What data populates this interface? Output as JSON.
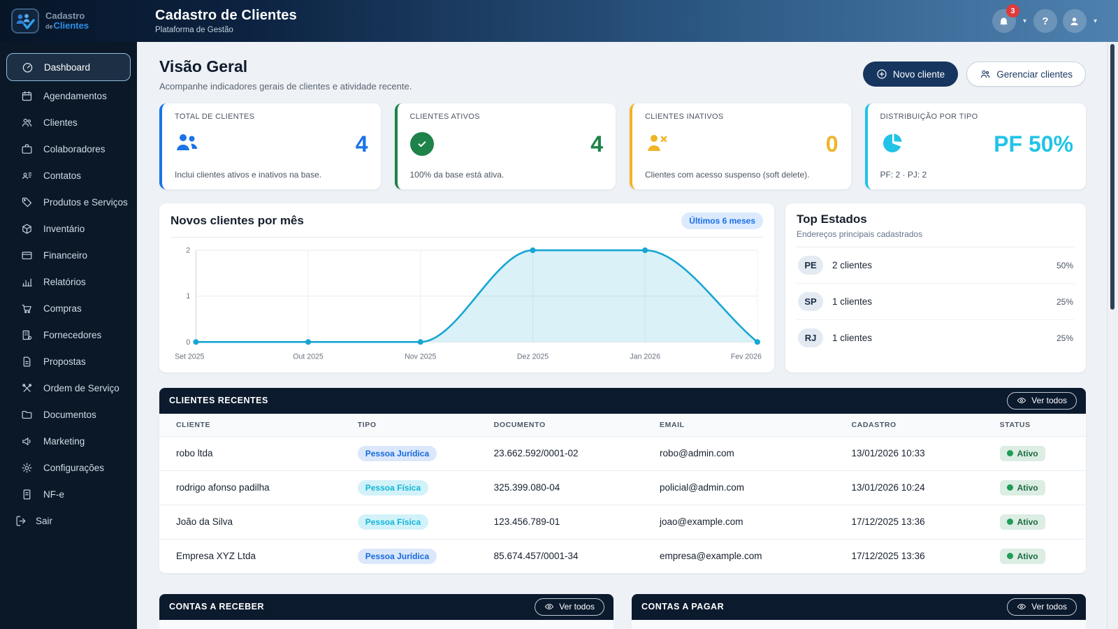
{
  "header": {
    "logo": {
      "line1": "Cadastro",
      "de": "de",
      "line2": "Clientes"
    },
    "title": "Cadastro de Clientes",
    "subtitle": "Plataforma de Gestão",
    "notifications_count": "3",
    "help_glyph": "?"
  },
  "sidebar": {
    "items": [
      {
        "label": "Dashboard"
      },
      {
        "label": "Agendamentos"
      },
      {
        "label": "Clientes"
      },
      {
        "label": "Colaboradores"
      },
      {
        "label": "Contatos"
      },
      {
        "label": "Produtos e Serviços"
      },
      {
        "label": "Inventário"
      },
      {
        "label": "Financeiro"
      },
      {
        "label": "Relatórios"
      },
      {
        "label": "Compras"
      },
      {
        "label": "Fornecedores"
      },
      {
        "label": "Propostas"
      },
      {
        "label": "Ordem de Serviço"
      },
      {
        "label": "Documentos"
      },
      {
        "label": "Marketing"
      },
      {
        "label": "Configurações"
      },
      {
        "label": "NF-e"
      },
      {
        "label": "Sair"
      }
    ]
  },
  "page": {
    "title": "Visão Geral",
    "subtitle": "Acompanhe indicadores gerais de clientes e atividade recente.",
    "new_client": "Novo cliente",
    "manage_clients": "Gerenciar clientes"
  },
  "stats": [
    {
      "label": "TOTAL DE CLIENTES",
      "value": "4",
      "footer": "Inclui clientes ativos e inativos na base.",
      "color": "#1a73e8"
    },
    {
      "label": "CLIENTES ATIVOS",
      "value": "4",
      "footer": "100% da base está ativa.",
      "color": "#1d8348"
    },
    {
      "label": "CLIENTES INATIVOS",
      "value": "0",
      "footer": "Clientes com acesso suspenso (soft delete).",
      "color": "#f0b429"
    },
    {
      "label": "DISTRIBUIÇÃO POR TIPO",
      "value": "PF 50%",
      "footer": "PF: 2 · PJ: 2",
      "color": "#22c3e6"
    }
  ],
  "chart_card": {
    "title": "Novos clientes por mês",
    "badge": "Últimos 6 meses"
  },
  "chart_data": {
    "type": "area",
    "x": [
      "Set 2025",
      "Out 2025",
      "Nov 2025",
      "Dez 2025",
      "Jan 2026",
      "Fev 2026"
    ],
    "values": [
      0,
      0,
      0,
      2,
      2,
      0
    ],
    "title": "Novos clientes por mês",
    "xlabel": "",
    "ylabel": "",
    "ylim": [
      0,
      2
    ],
    "yticks": [
      0,
      1,
      2
    ],
    "grid": true,
    "line_color": "#17a6d4",
    "fill_color": "rgba(23,166,212,0.16)"
  },
  "top_states": {
    "title": "Top Estados",
    "subtitle": "Endereços principais cadastrados",
    "rows": [
      {
        "code": "PE",
        "label": "2 clientes",
        "pct": "50%"
      },
      {
        "code": "SP",
        "label": "1 clientes",
        "pct": "25%"
      },
      {
        "code": "RJ",
        "label": "1 clientes",
        "pct": "25%"
      }
    ]
  },
  "recent_clients": {
    "title": "CLIENTES RECENTES",
    "view_all": "Ver todos",
    "columns": [
      "CLIENTE",
      "TIPO",
      "DOCUMENTO",
      "EMAIL",
      "CADASTRO",
      "STATUS"
    ],
    "rows": [
      {
        "name": "robo ltda",
        "type": "Pessoa Jurídica",
        "document": "23.662.592/0001-02",
        "email": "robo@admin.com",
        "created": "13/01/2026 10:33",
        "status": "Ativo"
      },
      {
        "name": "rodrigo afonso padilha",
        "type": "Pessoa Física",
        "document": "325.399.080-04",
        "email": "policial@admin.com",
        "created": "13/01/2026 10:24",
        "status": "Ativo"
      },
      {
        "name": "João da Silva",
        "type": "Pessoa Física",
        "document": "123.456.789-01",
        "email": "joao@example.com",
        "created": "17/12/2025 13:36",
        "status": "Ativo"
      },
      {
        "name": "Empresa XYZ Ltda",
        "type": "Pessoa Jurídica",
        "document": "85.674.457/0001-34",
        "email": "empresa@example.com",
        "created": "17/12/2025 13:36",
        "status": "Ativo"
      }
    ]
  },
  "bottom_sections": [
    {
      "title": "CONTAS A RECEBER",
      "view_all": "Ver todos"
    },
    {
      "title": "CONTAS A PAGAR",
      "view_all": "Ver todos"
    }
  ]
}
